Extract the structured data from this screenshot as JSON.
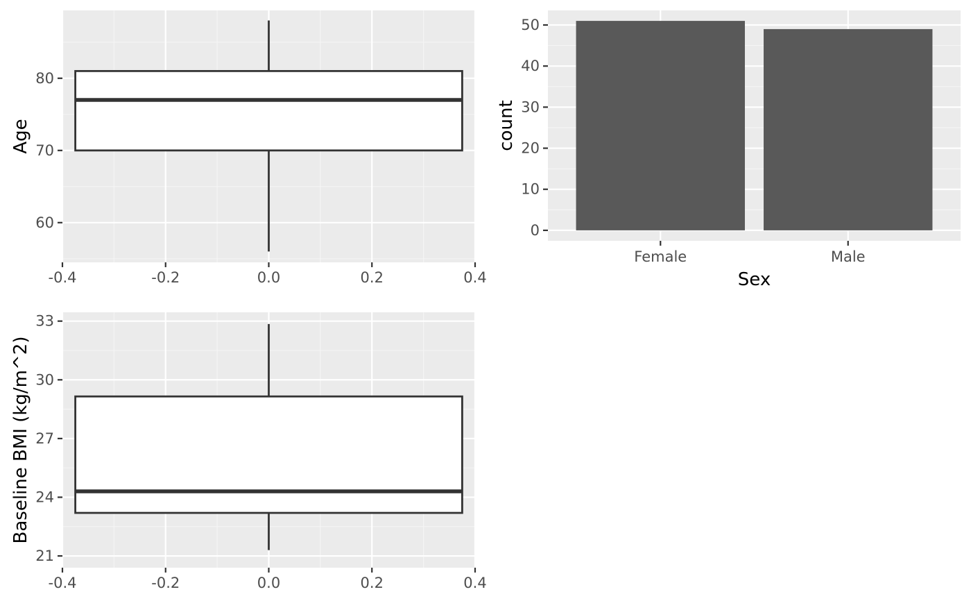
{
  "chart_data": [
    {
      "type": "box",
      "ylabel": "Age",
      "xlim": [
        -0.4,
        0.4
      ],
      "x_ticks": [
        -0.4,
        -0.2,
        0.0,
        0.2,
        0.4
      ],
      "x_tick_labels": [
        "-0.4",
        "-0.2",
        "0.0",
        "0.2",
        "0.4"
      ],
      "ylim": [
        54.5,
        89.4
      ],
      "y_ticks": [
        60,
        70,
        80
      ],
      "y_tick_labels": [
        "60",
        "70",
        "80"
      ],
      "box": {
        "x_min": -0.375,
        "x_max": 0.375,
        "x_center": 0.0,
        "whisker_low": 56,
        "q1": 70,
        "median": 77,
        "q3": 81,
        "whisker_high": 88
      },
      "grid": true
    },
    {
      "type": "bar",
      "xlabel": "Sex",
      "ylabel": "count",
      "categories": [
        "Female",
        "Male"
      ],
      "values": [
        51,
        49
      ],
      "ylim": [
        -2.55,
        53.55
      ],
      "y_ticks": [
        0,
        10,
        20,
        30,
        40,
        50
      ],
      "y_tick_labels": [
        "0",
        "10",
        "20",
        "30",
        "40",
        "50"
      ],
      "bar_color": "#595959",
      "grid": true
    },
    {
      "type": "box",
      "ylabel": "Baseline BMI (kg/m^2)",
      "xlim": [
        -0.4,
        0.4
      ],
      "x_ticks": [
        -0.4,
        -0.2,
        0.0,
        0.2,
        0.4
      ],
      "x_tick_labels": [
        "-0.4",
        "-0.2",
        "0.0",
        "0.2",
        "0.4"
      ],
      "ylim": [
        20.4,
        33.45
      ],
      "y_ticks": [
        21,
        24,
        27,
        30,
        33
      ],
      "y_tick_labels": [
        "21",
        "24",
        "27",
        "30",
        "33"
      ],
      "box": {
        "x_min": -0.375,
        "x_max": 0.375,
        "x_center": 0.0,
        "whisker_low": 21.3,
        "q1": 23.2,
        "median": 24.3,
        "q3": 29.15,
        "whisker_high": 32.85
      },
      "grid": true
    }
  ],
  "colors": {
    "panel_background": "#ebebeb",
    "grid_major": "#ffffff",
    "grid_minor": "#f5f5f5",
    "box_stroke": "#333333",
    "box_fill": "#ffffff",
    "tick_text": "#4d4d4d",
    "tick_mark": "#333333"
  }
}
